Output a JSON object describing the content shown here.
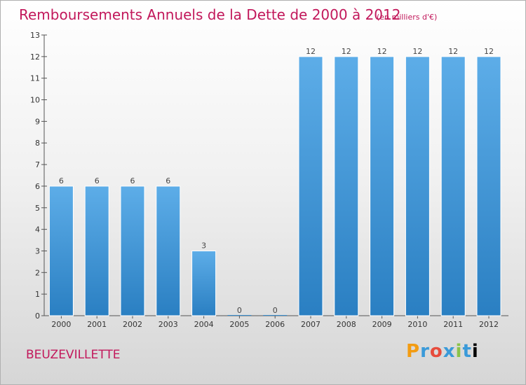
{
  "chart_data": {
    "type": "bar",
    "title": "Remboursements Annuels de la Dette de 2000 à 2012",
    "unit": "(en milliers d'€)",
    "categories": [
      "2000",
      "2001",
      "2002",
      "2003",
      "2004",
      "2005",
      "2006",
      "2007",
      "2008",
      "2009",
      "2010",
      "2011",
      "2012"
    ],
    "values": [
      6,
      6,
      6,
      6,
      3,
      0,
      0,
      12,
      12,
      12,
      12,
      12,
      12
    ],
    "value_labels": [
      "6",
      "6",
      "6",
      "6",
      "3",
      "0",
      "0",
      "12",
      "12",
      "12",
      "12",
      "12",
      "12"
    ],
    "ylim": [
      0,
      13
    ],
    "yticks": [
      0,
      1,
      2,
      3,
      4,
      5,
      6,
      7,
      8,
      9,
      10,
      11,
      12,
      13
    ],
    "ytick_labels": [
      "0",
      "1",
      "2",
      "3",
      "4",
      "5",
      "6",
      "7",
      "8",
      "9",
      "10",
      "11",
      "12",
      "13"
    ],
    "grid": false,
    "xlabel": "",
    "ylabel": "",
    "bar_color_top": "#5dade8",
    "bar_color_bottom": "#2a7fc2"
  },
  "commune": "BEUZEVILLETTE",
  "brand_letters": [
    "P",
    "r",
    "o",
    "x",
    "i",
    "t",
    "i"
  ]
}
